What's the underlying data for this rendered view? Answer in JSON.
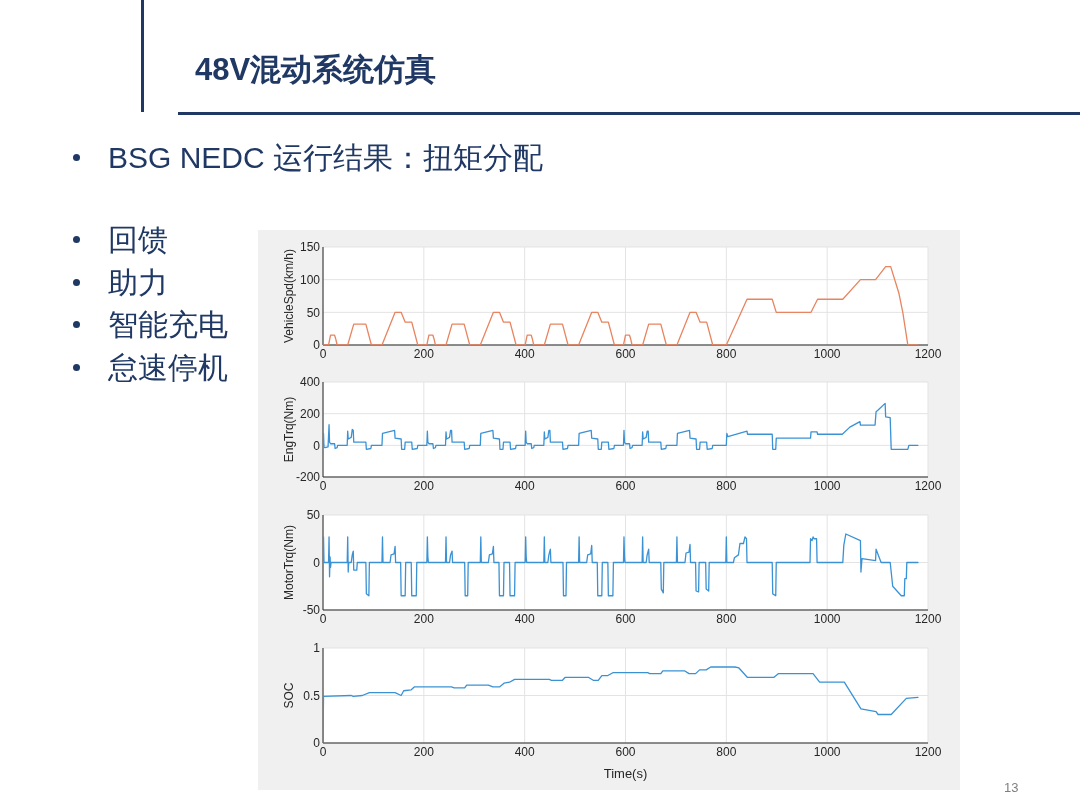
{
  "chart_data": [
    {
      "type": "other",
      "title": "48V混动系统仿真",
      "subtitle": "BSG NEDC 运行结果：扭矩分配",
      "annotations": [
        "回馈",
        "助力",
        "智能充电",
        "怠速停机",
        "13"
      ]
    },
    {
      "type": "line",
      "ylabel": "VehicleSpd(km/h)",
      "color": "#e8845f",
      "xlim": [
        0,
        1200
      ],
      "xticks": [
        0,
        200,
        400,
        600,
        800,
        1000,
        1200
      ],
      "ylim": [
        0,
        150
      ],
      "yticks": [
        0,
        50,
        100,
        150
      ],
      "grid": true,
      "x": [
        0,
        11,
        15,
        23,
        25,
        28,
        49,
        61,
        85,
        96,
        117,
        143,
        155,
        163,
        176,
        188,
        195,
        206,
        210,
        218,
        220,
        223,
        244,
        256,
        280,
        291,
        312,
        338,
        350,
        358,
        371,
        383,
        390,
        401,
        405,
        413,
        415,
        418,
        439,
        451,
        475,
        486,
        507,
        533,
        545,
        553,
        566,
        578,
        585,
        596,
        600,
        608,
        610,
        613,
        634,
        646,
        670,
        681,
        702,
        728,
        740,
        748,
        761,
        773,
        780,
        800,
        841,
        891,
        899,
        968,
        981,
        1031,
        1066,
        1096,
        1116,
        1126,
        1142,
        1150,
        1160,
        1180
      ],
      "values": [
        0,
        0,
        15,
        15,
        10,
        0,
        0,
        32,
        32,
        0,
        0,
        50,
        50,
        35,
        35,
        0,
        0,
        0,
        15,
        15,
        10,
        0,
        0,
        32,
        32,
        0,
        0,
        50,
        50,
        35,
        35,
        0,
        0,
        0,
        15,
        15,
        10,
        0,
        0,
        32,
        32,
        0,
        0,
        50,
        50,
        35,
        35,
        0,
        0,
        0,
        15,
        15,
        10,
        0,
        0,
        32,
        32,
        0,
        0,
        50,
        50,
        35,
        35,
        0,
        0,
        0,
        70,
        70,
        50,
        50,
        70,
        70,
        100,
        100,
        120,
        120,
        80,
        50,
        0,
        0
      ]
    },
    {
      "type": "line",
      "ylabel": "EngTrq(Nm)",
      "color": "#3a92d5",
      "xlim": [
        0,
        1200
      ],
      "xticks": [
        0,
        200,
        400,
        600,
        800,
        1000,
        1200
      ],
      "ylim": [
        -200,
        400
      ],
      "yticks": [
        -200,
        0,
        200,
        400
      ],
      "grid": true,
      "x": [
        0,
        1,
        2,
        4,
        10,
        12,
        13,
        15,
        23,
        24,
        28,
        29,
        48,
        49,
        50,
        56,
        58,
        60,
        61,
        85,
        86,
        95,
        96,
        117,
        118,
        142,
        143,
        155,
        156,
        162,
        163,
        176,
        177,
        187,
        188,
        195,
        206,
        207,
        208,
        210,
        218,
        219,
        223,
        224,
        243,
        244,
        245,
        251,
        253,
        255,
        256,
        280,
        281,
        290,
        291,
        312,
        313,
        337,
        338,
        350,
        351,
        357,
        358,
        371,
        372,
        382,
        383,
        390,
        401,
        402,
        403,
        405,
        413,
        414,
        418,
        419,
        438,
        439,
        440,
        446,
        448,
        450,
        451,
        475,
        476,
        485,
        486,
        507,
        508,
        532,
        533,
        545,
        546,
        552,
        553,
        566,
        567,
        577,
        578,
        585,
        596,
        597,
        598,
        600,
        608,
        609,
        613,
        614,
        633,
        634,
        635,
        641,
        643,
        645,
        646,
        670,
        671,
        680,
        681,
        702,
        703,
        727,
        728,
        740,
        741,
        747,
        748,
        761,
        762,
        772,
        773,
        780,
        800,
        801,
        803,
        841,
        842,
        891,
        892,
        898,
        899,
        967,
        968,
        980,
        981,
        1030,
        1045,
        1065,
        1066,
        1095,
        1097,
        1100,
        1115,
        1116,
        1125,
        1127,
        1160,
        1162,
        1180
      ],
      "values": [
        0,
        75,
        -10,
        -15,
        -10,
        130,
        20,
        10,
        10,
        -20,
        -15,
        0,
        0,
        90,
        40,
        50,
        100,
        95,
        20,
        20,
        -25,
        -20,
        0,
        0,
        75,
        95,
        45,
        40,
        -25,
        -25,
        20,
        20,
        -25,
        -20,
        0,
        0,
        0,
        90,
        20,
        10,
        10,
        -20,
        -15,
        0,
        0,
        85,
        40,
        50,
        95,
        95,
        20,
        20,
        -25,
        -20,
        0,
        0,
        75,
        95,
        45,
        40,
        -25,
        -25,
        20,
        20,
        -25,
        -20,
        0,
        0,
        0,
        90,
        20,
        10,
        10,
        -20,
        -15,
        0,
        0,
        85,
        40,
        50,
        95,
        95,
        20,
        20,
        -25,
        -20,
        0,
        0,
        75,
        95,
        45,
        40,
        -25,
        -25,
        20,
        20,
        -25,
        -20,
        0,
        0,
        0,
        95,
        20,
        10,
        10,
        -20,
        -15,
        0,
        0,
        85,
        40,
        50,
        90,
        90,
        20,
        20,
        -25,
        -20,
        0,
        0,
        75,
        95,
        45,
        40,
        -25,
        -25,
        20,
        20,
        -25,
        -20,
        0,
        0,
        0,
        75,
        55,
        90,
        70,
        70,
        -25,
        -25,
        45,
        45,
        85,
        85,
        70,
        70,
        115,
        150,
        128,
        128,
        212,
        220,
        265,
        180,
        175,
        -25,
        -25,
        0,
        0
      ]
    },
    {
      "type": "line",
      "ylabel": "MotorTrq(Nm)",
      "color": "#3a92d5",
      "xlim": [
        0,
        1200
      ],
      "xticks": [
        0,
        200,
        400,
        600,
        800,
        1000,
        1200
      ],
      "ylim": [
        -50,
        50
      ],
      "yticks": [
        -50,
        0,
        50
      ],
      "grid": true,
      "x": [
        0,
        1,
        2,
        11,
        12,
        13,
        14,
        15,
        16,
        48,
        49,
        50,
        51,
        56,
        58,
        60,
        61,
        67,
        68,
        85,
        86,
        91,
        92,
        117,
        118,
        119,
        133,
        135,
        141,
        143,
        144,
        154,
        155,
        163,
        164,
        175,
        176,
        185,
        186,
        195,
        206,
        207,
        208,
        209,
        243,
        244,
        245,
        251,
        253,
        256,
        257,
        281,
        282,
        287,
        288,
        312,
        313,
        314,
        328,
        330,
        336,
        338,
        339,
        349,
        350,
        358,
        359,
        370,
        371,
        380,
        381,
        390,
        401,
        402,
        403,
        404,
        438,
        439,
        440,
        446,
        448,
        451,
        452,
        476,
        477,
        482,
        483,
        507,
        508,
        509,
        523,
        525,
        531,
        533,
        534,
        544,
        545,
        553,
        554,
        565,
        566,
        575,
        576,
        585,
        596,
        597,
        598,
        599,
        633,
        634,
        635,
        641,
        643,
        646,
        647,
        670,
        671,
        675,
        676,
        701,
        702,
        703,
        718,
        720,
        726,
        728,
        729,
        739,
        740,
        745,
        746,
        759,
        760,
        765,
        766,
        799,
        800,
        801,
        814,
        816,
        824,
        827,
        834,
        837,
        840,
        841,
        891,
        892,
        898,
        899,
        966,
        967,
        970,
        972,
        974,
        979,
        980,
        1031,
        1033,
        1037,
        1066,
        1067,
        1069,
        1096,
        1097,
        1107,
        1125,
        1130,
        1147,
        1153,
        1154,
        1157,
        1158,
        1180
      ],
      "values": [
        0,
        27,
        0,
        0,
        27,
        -15,
        6,
        -5,
        0,
        0,
        27,
        -10,
        0,
        0,
        8,
        12,
        -8,
        -8,
        0,
        0,
        -33,
        -35,
        0,
        0,
        27,
        0,
        0,
        8,
        9,
        17,
        0,
        0,
        -35,
        -35,
        0,
        0,
        -35,
        -35,
        0,
        0,
        0,
        27,
        6,
        0,
        0,
        27,
        0,
        0,
        8,
        12,
        0,
        0,
        -35,
        -35,
        0,
        0,
        27,
        0,
        0,
        8,
        9,
        17,
        0,
        0,
        -35,
        -35,
        0,
        0,
        -35,
        -35,
        0,
        0,
        0,
        27,
        6,
        0,
        0,
        27,
        0,
        0,
        8,
        14,
        0,
        0,
        -35,
        -35,
        0,
        0,
        27,
        0,
        0,
        8,
        9,
        18,
        0,
        0,
        -35,
        -35,
        0,
        0,
        -35,
        -35,
        0,
        0,
        0,
        27,
        6,
        0,
        0,
        27,
        0,
        0,
        8,
        14,
        0,
        0,
        -28,
        -32,
        0,
        0,
        27,
        0,
        0,
        10,
        11,
        19,
        0,
        0,
        -30,
        -31,
        0,
        0,
        -28,
        -30,
        0,
        0,
        27,
        0,
        0,
        5,
        8,
        20,
        20,
        27,
        25,
        0,
        0,
        -33,
        -35,
        0,
        0,
        25,
        23,
        27,
        25,
        25,
        0,
        0,
        18,
        30,
        23,
        -10,
        4,
        2,
        14,
        0,
        0,
        -25,
        -35,
        -35,
        -17,
        -17,
        0,
        0
      ]
    },
    {
      "type": "line",
      "ylabel": "SOC",
      "xlabel": "Time(s)",
      "color": "#3a92d5",
      "xlim": [
        0,
        1200
      ],
      "xticks": [
        0,
        200,
        400,
        600,
        800,
        1000,
        1200
      ],
      "ylim": [
        0,
        1
      ],
      "yticks": [
        0,
        0.5,
        1
      ],
      "grid": true,
      "x": [
        0,
        1,
        56,
        60,
        78,
        92,
        143,
        155,
        160,
        175,
        181,
        255,
        260,
        281,
        285,
        328,
        337,
        350,
        359,
        370,
        380,
        449,
        453,
        475,
        480,
        527,
        536,
        546,
        553,
        565,
        575,
        644,
        648,
        670,
        674,
        717,
        726,
        739,
        747,
        760,
        769,
        817,
        825,
        842,
        894,
        903,
        972,
        985,
        1034,
        1067,
        1097,
        1101,
        1127,
        1157,
        1180
      ],
      "values": [
        0,
        0.49,
        0.5,
        0.49,
        0.5,
        0.53,
        0.53,
        0.5,
        0.55,
        0.56,
        0.59,
        0.59,
        0.58,
        0.58,
        0.61,
        0.61,
        0.59,
        0.59,
        0.63,
        0.64,
        0.67,
        0.67,
        0.66,
        0.66,
        0.69,
        0.69,
        0.66,
        0.66,
        0.71,
        0.71,
        0.74,
        0.74,
        0.73,
        0.73,
        0.76,
        0.76,
        0.73,
        0.73,
        0.77,
        0.77,
        0.8,
        0.8,
        0.79,
        0.69,
        0.69,
        0.73,
        0.73,
        0.64,
        0.64,
        0.36,
        0.33,
        0.3,
        0.3,
        0.47,
        0.48
      ]
    }
  ]
}
